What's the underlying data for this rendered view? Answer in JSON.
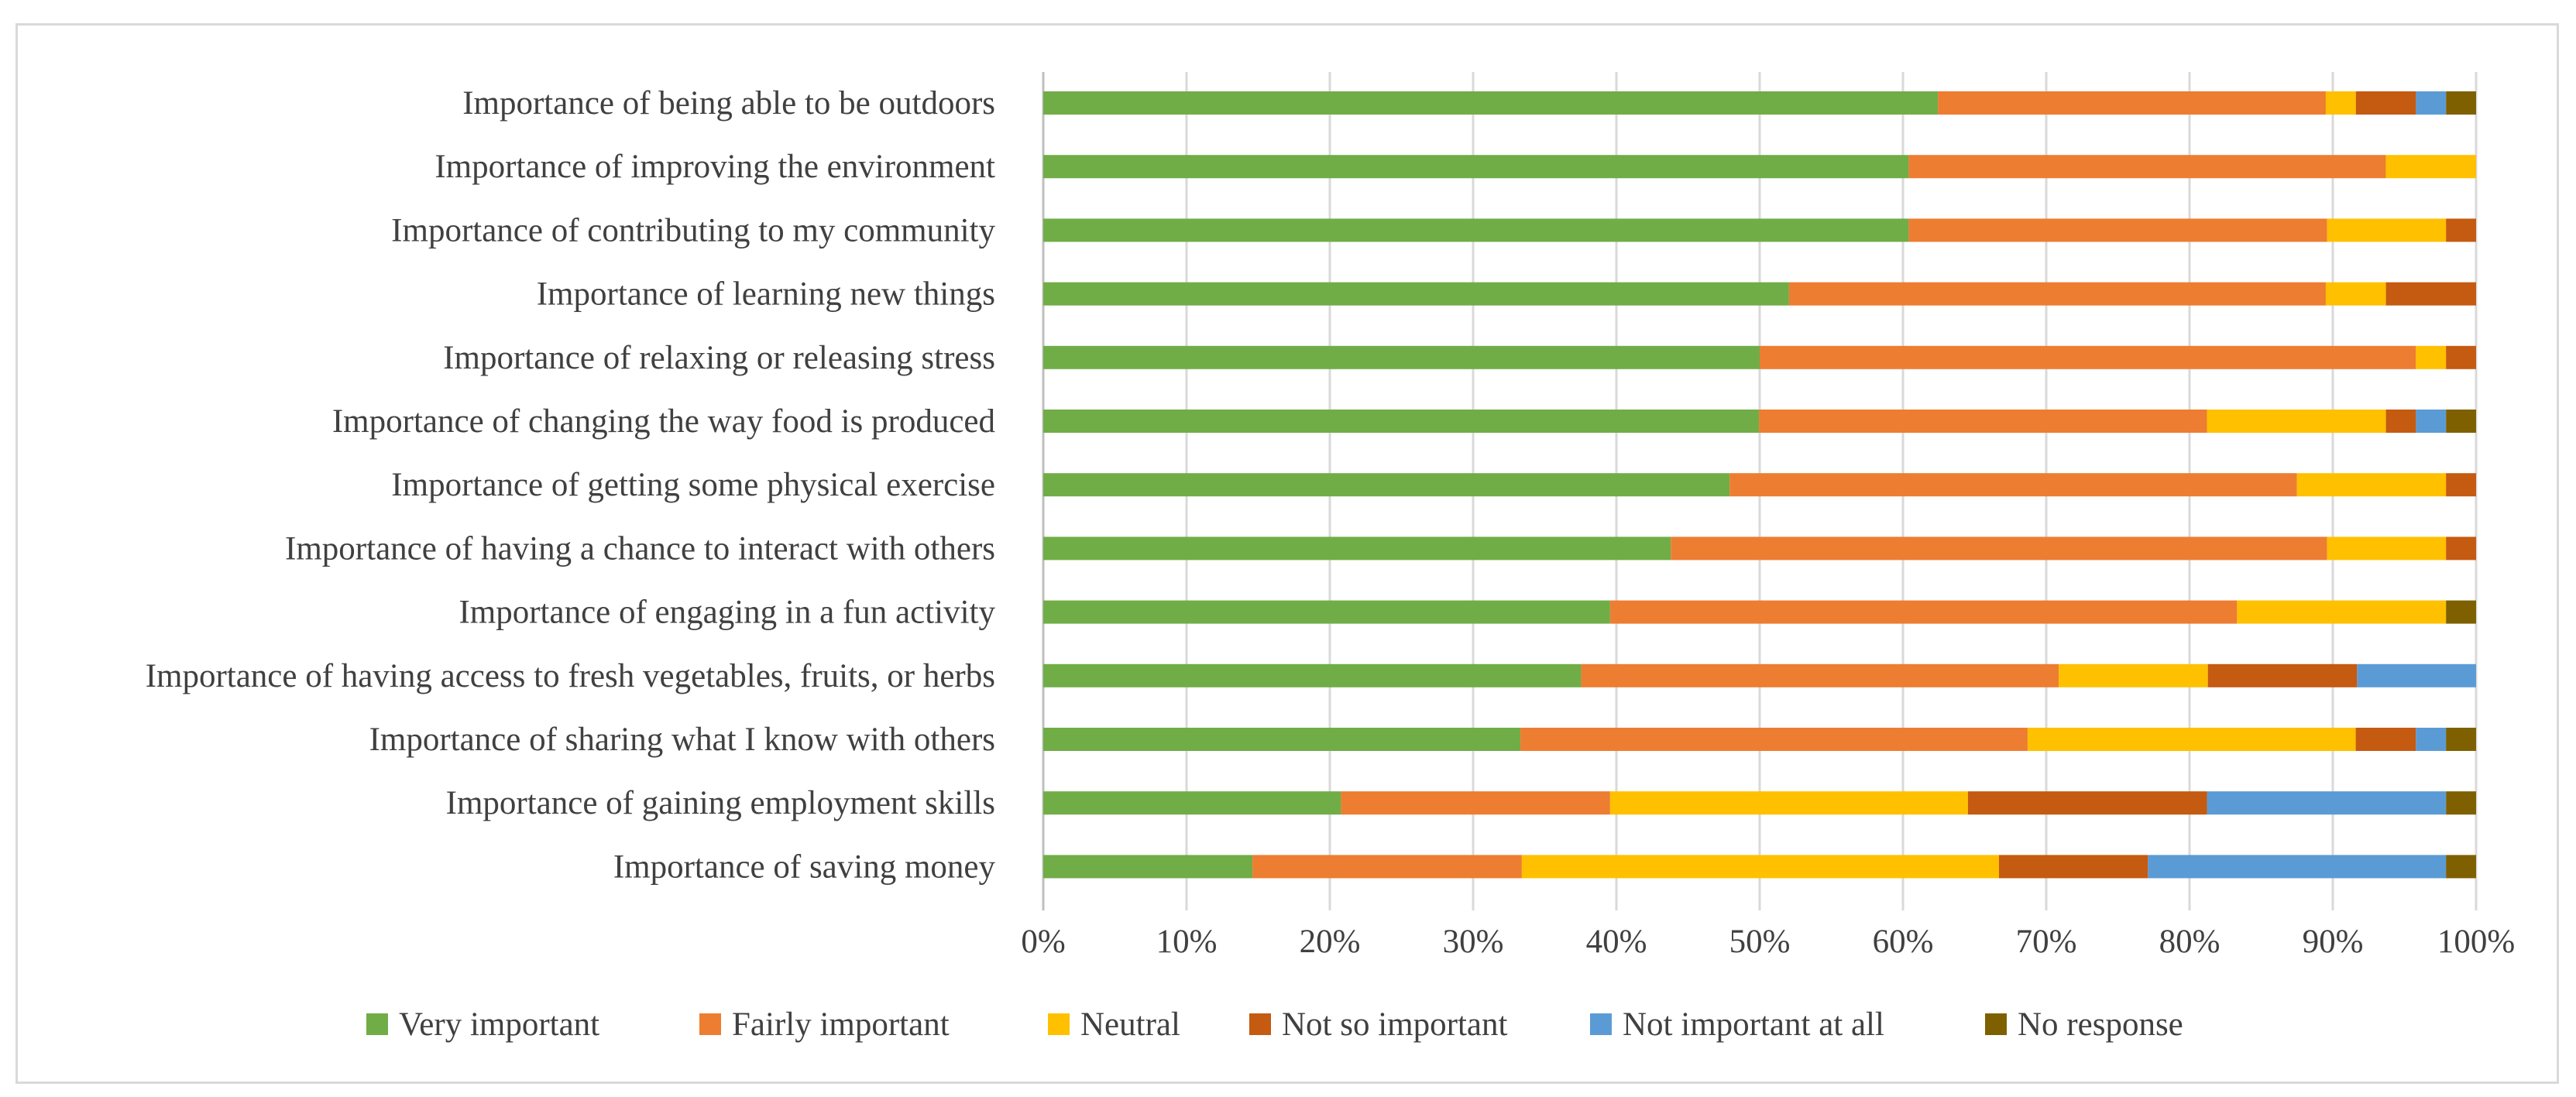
{
  "chart_data": {
    "type": "bar",
    "orientation": "horizontal",
    "stacked": "percent",
    "title": "",
    "xlabel": "",
    "ylabel": "",
    "xlim": [
      0,
      100
    ],
    "grid": true,
    "legend_position": "bottom",
    "x_ticks": [
      "0%",
      "10%",
      "20%",
      "30%",
      "40%",
      "50%",
      "60%",
      "70%",
      "80%",
      "90%",
      "100%"
    ],
    "categories": [
      "Importance of being able to be outdoors",
      "Importance of improving the environment",
      "Importance of contributing to my community",
      "Importance of learning new things",
      "Importance of relaxing or releasing stress",
      "Importance of changing the way food is produced",
      "Importance of getting some physical exercise",
      "Importance of having a chance to interact with others",
      "Importance of engaging in a fun activity",
      "Importance of having access to fresh vegetables, fruits, or herbs",
      "Importance of sharing what I know with others",
      "Importance of gaining employment skills",
      "Importance of saving money"
    ],
    "series": [
      {
        "name": "Very important",
        "color": "#70ad47",
        "values": [
          62.5,
          60.4,
          60.4,
          52.1,
          50.0,
          50.0,
          47.9,
          43.8,
          39.6,
          37.5,
          33.3,
          20.8,
          14.6
        ]
      },
      {
        "name": "Fairly important",
        "color": "#ed7d31",
        "values": [
          27.1,
          33.3,
          29.2,
          37.5,
          45.8,
          31.3,
          39.6,
          45.8,
          43.8,
          33.3,
          35.4,
          18.8,
          18.8
        ]
      },
      {
        "name": "Neutral",
        "color": "#ffc000",
        "values": [
          2.1,
          6.3,
          8.3,
          4.2,
          2.1,
          12.5,
          10.4,
          8.3,
          14.6,
          10.4,
          22.9,
          25.0,
          33.3
        ]
      },
      {
        "name": "Not so important",
        "color": "#c55a11",
        "values": [
          4.2,
          0.0,
          2.1,
          6.3,
          2.1,
          2.1,
          2.1,
          2.1,
          0.0,
          10.4,
          4.2,
          16.7,
          10.4
        ]
      },
      {
        "name": "Not important at all",
        "color": "#5b9bd5",
        "values": [
          2.1,
          0.0,
          0.0,
          0.0,
          0.0,
          2.1,
          0.0,
          0.0,
          0.0,
          8.3,
          2.1,
          16.7,
          20.8
        ]
      },
      {
        "name": "No response",
        "color": "#7f6000",
        "values": [
          2.1,
          0.0,
          0.0,
          0.0,
          0.0,
          2.1,
          0.0,
          0.0,
          2.1,
          0.0,
          2.1,
          2.1,
          2.1
        ]
      }
    ]
  }
}
